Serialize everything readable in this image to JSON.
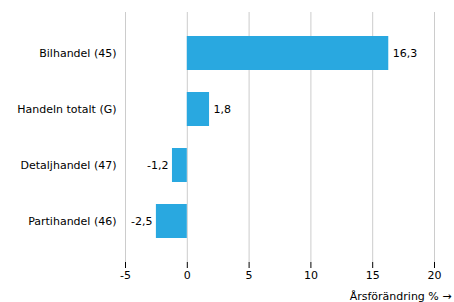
{
  "chart_data": {
    "type": "bar",
    "orientation": "horizontal",
    "categories": [
      "Partihandel (46)",
      "Detaljhandel (47)",
      "Handeln totalt (G)",
      "Bilhandel (45)"
    ],
    "values": [
      -2.5,
      -1.2,
      1.8,
      16.3
    ],
    "value_labels": [
      "-2,5",
      "-1,2",
      "1,8",
      "16,3"
    ],
    "data_labels": true,
    "color": "#29a8e0",
    "xlabel": "Årsförändring %",
    "xlim": [
      -5,
      20
    ],
    "xticks": [
      -5,
      0,
      5,
      10,
      15,
      20
    ],
    "grid": true
  }
}
